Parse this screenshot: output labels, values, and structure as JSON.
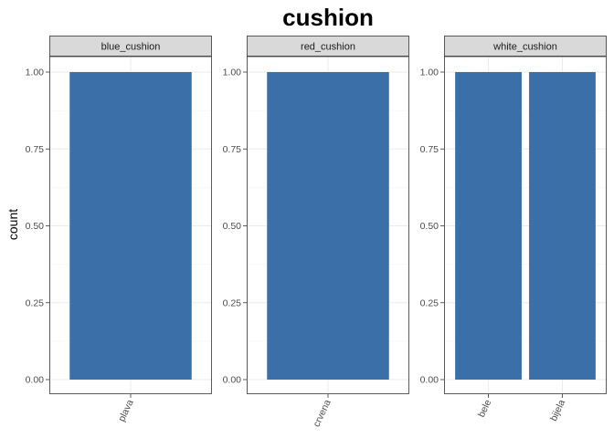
{
  "chart_data": {
    "type": "bar",
    "title": "cushion",
    "xlabel": "",
    "ylabel": "count",
    "ylim": [
      0,
      1
    ],
    "yticks": [
      "0.00",
      "0.25",
      "0.50",
      "0.75",
      "1.00"
    ],
    "grid": true,
    "bar_color": "#3a6fa7",
    "strip_color": "#d9d9d9",
    "panels": [
      {
        "name": "blue_cushion",
        "categories": [
          "plava"
        ],
        "values": [
          1
        ]
      },
      {
        "name": "red_cushion",
        "categories": [
          "crvena"
        ],
        "values": [
          1
        ]
      },
      {
        "name": "white_cushion",
        "categories": [
          "bele",
          "bijela"
        ],
        "values": [
          1,
          1
        ]
      }
    ]
  }
}
